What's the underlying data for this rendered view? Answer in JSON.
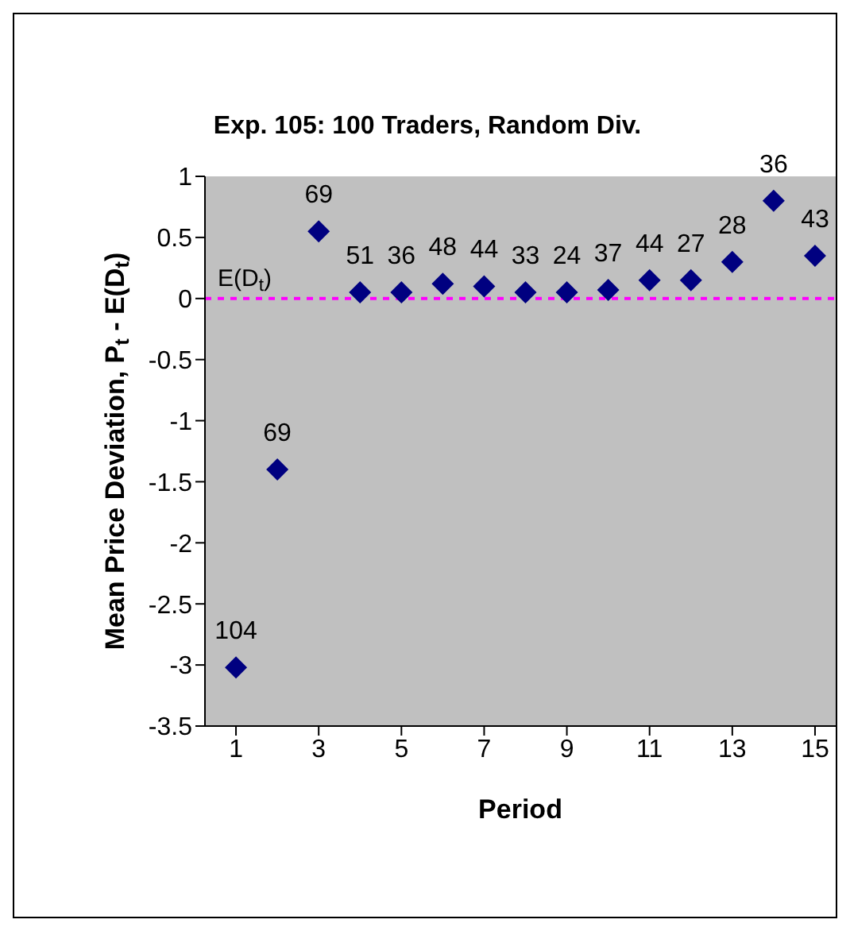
{
  "chart_data": {
    "type": "scatter",
    "title": "Exp. 105: 100 Traders, Random Div.",
    "xlabel": "Period",
    "ylabel": "Mean Price Deviation, P$_{t}$ - E(D$_{t}$)",
    "x": [
      1,
      2,
      3,
      4,
      5,
      6,
      7,
      8,
      9,
      10,
      11,
      12,
      13,
      14,
      15
    ],
    "series": [
      {
        "color": "#000080",
        "values": [
          -3.02,
          -1.4,
          0.55,
          0.05,
          0.05,
          0.12,
          0.1,
          0.05,
          0.05,
          0.07,
          0.15,
          0.15,
          0.3,
          0.8,
          0.35
        ]
      }
    ],
    "annotations": [
      {
        "text": "104",
        "x": 1,
        "y": -3.02
      },
      {
        "text": "69",
        "x": 2,
        "y": -1.4
      },
      {
        "text": "69",
        "x": 3,
        "y": 0.55
      },
      {
        "text": "51",
        "x": 4,
        "y": 0.05
      },
      {
        "text": "36",
        "x": 5,
        "y": 0.05
      },
      {
        "text": "48",
        "x": 6,
        "y": 0.12
      },
      {
        "text": "44",
        "x": 7,
        "y": 0.1
      },
      {
        "text": "33",
        "x": 8,
        "y": 0.05
      },
      {
        "text": "24",
        "x": 9,
        "y": 0.05
      },
      {
        "text": "37",
        "x": 10,
        "y": 0.07
      },
      {
        "text": "44",
        "x": 11,
        "y": 0.15
      },
      {
        "text": "27",
        "x": 12,
        "y": 0.15
      },
      {
        "text": "28",
        "x": 13,
        "y": 0.3
      },
      {
        "text": "36",
        "x": 14,
        "y": 0.8
      },
      {
        "text": "43",
        "x": 15,
        "y": 0.35
      }
    ],
    "xlim": [
      0.25,
      15.5
    ],
    "xticks": [
      1,
      3,
      5,
      7,
      9,
      11,
      13,
      15
    ],
    "ylim": [
      -3.5,
      1
    ],
    "yticks": [
      1,
      0.5,
      0,
      -0.5,
      -1,
      -1.5,
      -2,
      -2.5,
      -3,
      -3.5
    ],
    "ref_lines": [
      {
        "axis": "y",
        "value": 0,
        "label": "E(D$_{t}$)",
        "color": "#ff00ff",
        "line_style": "dashed"
      }
    ],
    "marker": "diamond",
    "grid": false,
    "legend": false
  }
}
